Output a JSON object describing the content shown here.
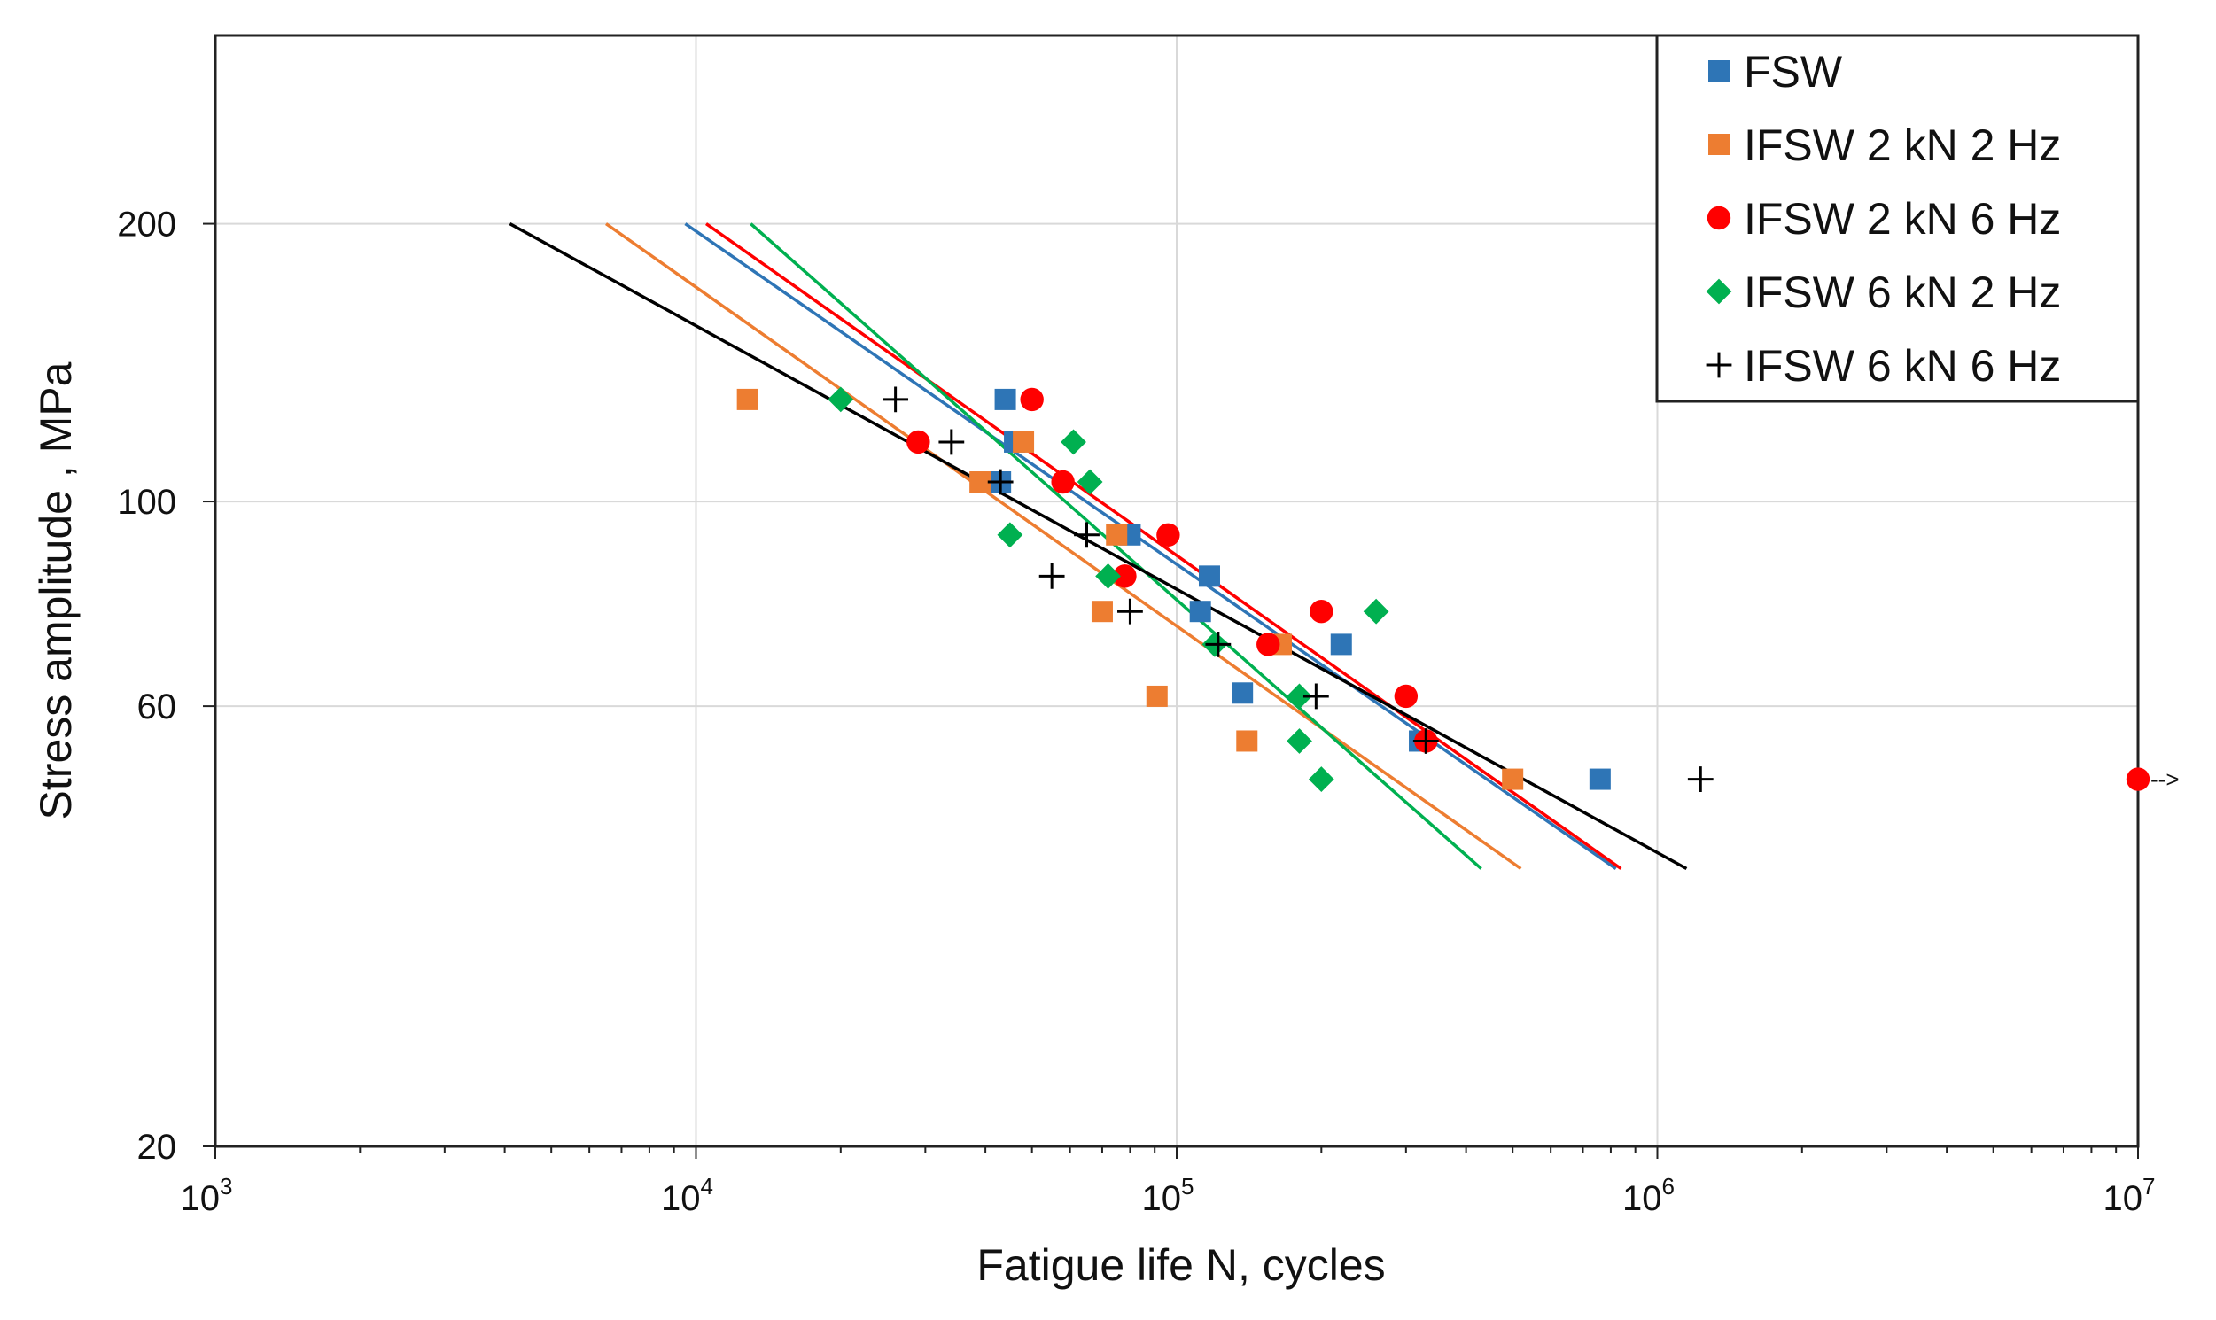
{
  "chart_data": {
    "type": "scatter",
    "xlabel": "Fatigue life N, cycles",
    "ylabel": "Stress amplitude , MPa",
    "xscale": "log",
    "yscale": "log",
    "xlim": [
      1000,
      10000000
    ],
    "ylim": [
      20,
      320
    ],
    "x_ticks": [
      {
        "value": 1000,
        "base": "10",
        "exp": "3"
      },
      {
        "value": 10000,
        "base": "10",
        "exp": "4"
      },
      {
        "value": 100000,
        "base": "10",
        "exp": "5"
      },
      {
        "value": 1000000,
        "base": "10",
        "exp": "6"
      },
      {
        "value": 10000000,
        "base": "10",
        "exp": "7"
      }
    ],
    "y_ticks": [
      {
        "value": 200,
        "label": "200"
      },
      {
        "value": 100,
        "label": "100"
      },
      {
        "value": 60,
        "label": "60"
      },
      {
        "value": 20,
        "label": "20"
      }
    ],
    "grid": true,
    "legend_position": "top-right",
    "runout_annotation": {
      "x": 10000000,
      "y": 50,
      "text": "-->"
    },
    "series": [
      {
        "name": "FSW",
        "color": "#2E75B6",
        "marker": "square",
        "points": [
          [
            44000,
            129
          ],
          [
            46000,
            116
          ],
          [
            43000,
            105
          ],
          [
            80000,
            92
          ],
          [
            117000,
            83
          ],
          [
            112000,
            76
          ],
          [
            220000,
            70
          ],
          [
            137000,
            62
          ],
          [
            320000,
            55
          ],
          [
            760000,
            50
          ]
        ],
        "fit": {
          "x": [
            9500,
            820000
          ],
          "y": [
            200,
            40
          ]
        }
      },
      {
        "name": "IFSW 2 kN 2 Hz",
        "color": "#ED7D31",
        "marker": "square",
        "points": [
          [
            12800,
            129
          ],
          [
            48000,
            116
          ],
          [
            39000,
            105
          ],
          [
            75000,
            92
          ],
          [
            70000,
            76
          ],
          [
            165000,
            70
          ],
          [
            91000,
            61.5
          ],
          [
            140000,
            55
          ],
          [
            500000,
            50
          ]
        ],
        "fit": {
          "x": [
            6500,
            520000
          ],
          "y": [
            200,
            40
          ]
        }
      },
      {
        "name": "IFSW 2 kN 6 Hz",
        "color": "#FF0000",
        "marker": "circle",
        "points": [
          [
            50000,
            129
          ],
          [
            29000,
            116
          ],
          [
            58000,
            105
          ],
          [
            96000,
            92
          ],
          [
            78000,
            83
          ],
          [
            200000,
            76
          ],
          [
            155000,
            70
          ],
          [
            300000,
            61.5
          ],
          [
            330000,
            55
          ],
          [
            10000000,
            50
          ]
        ],
        "fit": {
          "x": [
            10500,
            840000
          ],
          "y": [
            200,
            40
          ]
        }
      },
      {
        "name": "IFSW 6 kN 2 Hz",
        "color": "#00B050",
        "marker": "diamond",
        "points": [
          [
            20000,
            129
          ],
          [
            61000,
            116
          ],
          [
            66000,
            105
          ],
          [
            45000,
            92
          ],
          [
            72000,
            83
          ],
          [
            260000,
            76
          ],
          [
            120000,
            70
          ],
          [
            180000,
            61.5
          ],
          [
            180000,
            55
          ],
          [
            200000,
            50
          ]
        ],
        "fit": {
          "x": [
            13000,
            430000
          ],
          "y": [
            200,
            40
          ]
        }
      },
      {
        "name": "IFSW 6 kN 6 Hz",
        "color": "#000000",
        "marker": "plus",
        "points": [
          [
            26000,
            129
          ],
          [
            34000,
            116
          ],
          [
            43000,
            105
          ],
          [
            65000,
            92
          ],
          [
            55000,
            83
          ],
          [
            80000,
            76
          ],
          [
            122000,
            70
          ],
          [
            195000,
            61.5
          ],
          [
            330000,
            55
          ],
          [
            1230000,
            50
          ]
        ],
        "fit": {
          "x": [
            4100,
            1150000
          ],
          "y": [
            200,
            40
          ]
        }
      }
    ]
  }
}
